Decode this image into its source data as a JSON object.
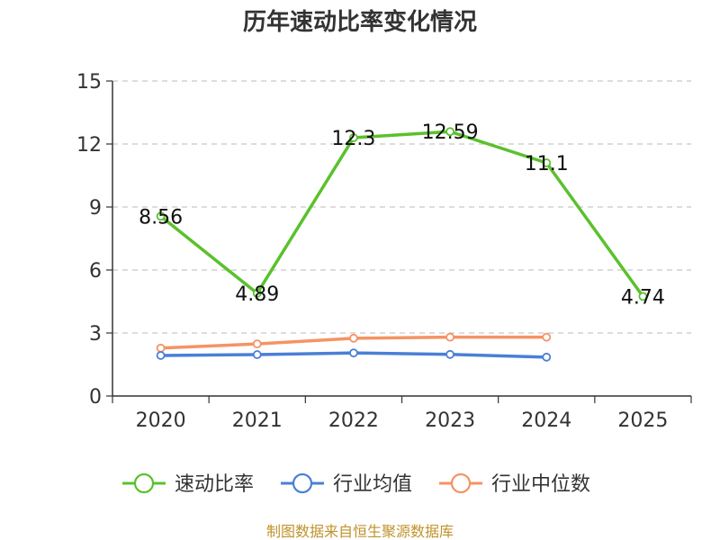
{
  "chart_data": {
    "type": "line",
    "title": "历年速动比率变化情况",
    "categories": [
      "2020",
      "2021",
      "2022",
      "2023",
      "2024",
      "2025"
    ],
    "ylim": [
      0,
      15
    ],
    "yticks": [
      0,
      3,
      6,
      9,
      12,
      15
    ],
    "grid": true,
    "legend_position": "bottom",
    "series": [
      {
        "name": "速动比率",
        "color": "#5ac12c",
        "values": [
          8.56,
          4.89,
          12.3,
          12.59,
          11.1,
          4.74
        ],
        "labels": [
          "8.56",
          "4.89",
          "12.3",
          "12.59",
          "11.1",
          "4.74"
        ]
      },
      {
        "name": "行业均值",
        "color": "#4a7fd6",
        "values": [
          1.93,
          1.97,
          2.05,
          1.98,
          1.85,
          null
        ]
      },
      {
        "name": "行业中位数",
        "color": "#f59364",
        "values": [
          2.28,
          2.48,
          2.75,
          2.8,
          2.8,
          null
        ]
      }
    ]
  },
  "source_text": "制图数据来自恒生聚源数据库"
}
